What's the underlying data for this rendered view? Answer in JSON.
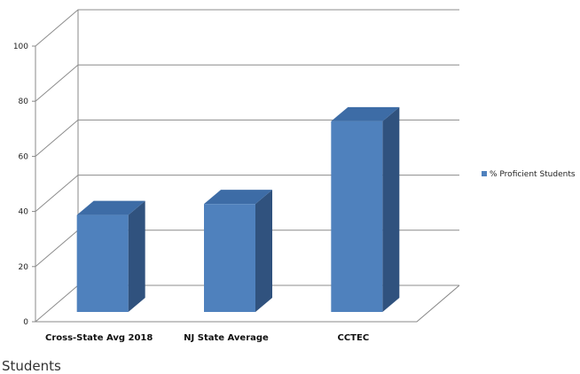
{
  "chart_data": {
    "type": "bar",
    "style": "3d-clustered-column",
    "categories": [
      "Cross-State Avg 2018",
      "NJ State Average",
      "CCTEC"
    ],
    "series": [
      {
        "name": "% Proficient Students",
        "values": [
          40,
          44,
          74
        ],
        "color": "#4f81bd"
      }
    ],
    "ylim": [
      0,
      100
    ],
    "yticks": [
      0,
      20,
      40,
      60,
      80,
      100
    ],
    "grid": true,
    "legend": "right"
  },
  "caption": "Students"
}
